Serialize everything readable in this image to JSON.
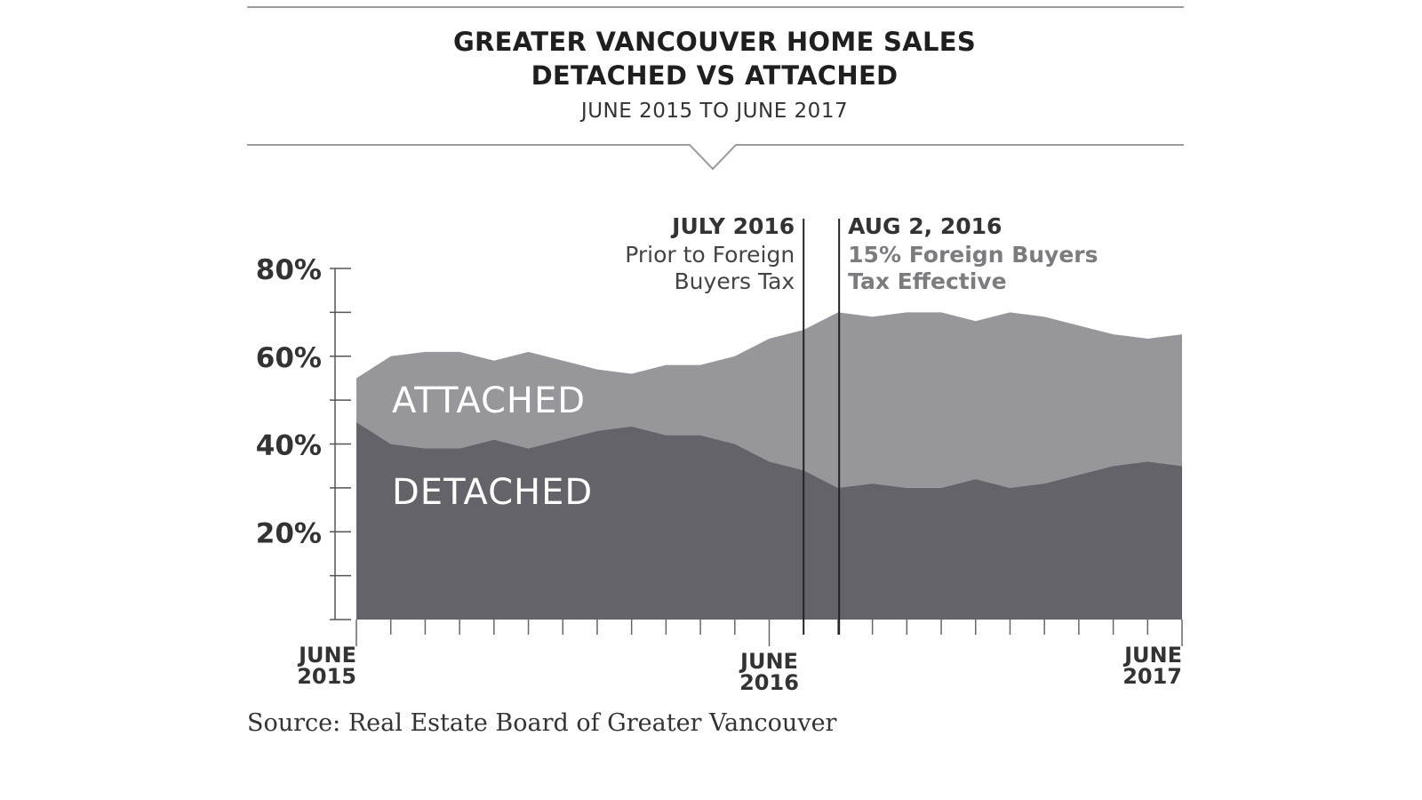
{
  "chart_data": {
    "type": "area",
    "stacked": true,
    "title_line1": "GREATER VANCOUVER HOME SALES",
    "title_line2": "DETACHED VS ATTACHED",
    "subtitle": "JUNE 2015 TO JUNE 2017",
    "source": "Source: Real Estate Board of Greater Vancouver",
    "x": [
      "2015-06",
      "2015-07",
      "2015-08",
      "2015-09",
      "2015-10",
      "2015-11",
      "2015-12",
      "2016-01",
      "2016-02",
      "2016-03",
      "2016-04",
      "2016-05",
      "2016-06",
      "2016-07",
      "2016-08",
      "2016-09",
      "2016-10",
      "2016-11",
      "2016-12",
      "2017-01",
      "2017-02",
      "2017-03",
      "2017-04",
      "2017-05",
      "2017-06"
    ],
    "x_tick_labels": [
      {
        "x": "2015-06",
        "line1": "JUNE",
        "line2": "2015"
      },
      {
        "x": "2016-06",
        "line1": "JUNE",
        "line2": "2016"
      },
      {
        "x": "2017-06",
        "line1": "JUNE",
        "line2": "2017"
      }
    ],
    "y_ticks": [
      20,
      40,
      60,
      80
    ],
    "y_tick_labels": [
      "20%",
      "40%",
      "60%",
      "80%"
    ],
    "ylim": [
      0,
      80
    ],
    "series": [
      {
        "name": "DETACHED",
        "color": "#646369",
        "values": [
          45,
          40,
          39,
          39,
          41,
          39,
          41,
          43,
          44,
          42,
          42,
          40,
          36,
          34,
          30,
          31,
          30,
          30,
          32,
          30,
          31,
          33,
          35,
          36,
          35
        ]
      },
      {
        "name": "ATTACHED",
        "color": "#97969a",
        "values": [
          10,
          20,
          22,
          22,
          18,
          22,
          18,
          14,
          12,
          16,
          16,
          20,
          28,
          32,
          40,
          38,
          40,
          40,
          36,
          40,
          38,
          34,
          30,
          28,
          30
        ]
      }
    ],
    "total_top": [
      55,
      60,
      61,
      61,
      59,
      61,
      59,
      57,
      56,
      58,
      58,
      60,
      64,
      66,
      70,
      69,
      70,
      70,
      68,
      70,
      69,
      67,
      65,
      64,
      65
    ],
    "annotations": [
      {
        "x": "2016-07",
        "title": "JULY 2016",
        "lines": [
          "Prior to Foreign",
          "Buyers Tax"
        ],
        "align": "right"
      },
      {
        "x": "2016-08-02",
        "title": "AUG 2, 2016",
        "lines": [
          "15% Foreign Buyers",
          "Tax Effective"
        ],
        "align": "left"
      }
    ]
  }
}
